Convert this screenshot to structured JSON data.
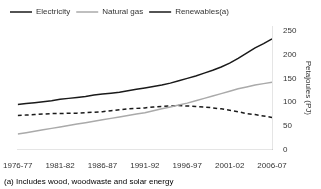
{
  "chart_data": {
    "type": "line",
    "x": [
      0,
      1,
      2,
      3,
      4,
      5,
      6,
      7,
      8,
      9,
      10,
      11,
      12,
      13,
      14,
      15,
      16,
      17,
      18,
      19,
      20,
      21,
      22,
      23,
      24,
      25,
      26,
      27,
      28,
      29,
      30
    ],
    "xlim": [
      0,
      30
    ],
    "xticks": [
      {
        "value": 0,
        "label": "1976-77"
      },
      {
        "value": 5,
        "label": "1981-82"
      },
      {
        "value": 10,
        "label": "1986-87"
      },
      {
        "value": 15,
        "label": "1991-92"
      },
      {
        "value": 20,
        "label": "1996-97"
      },
      {
        "value": 25,
        "label": "2001-02"
      },
      {
        "value": 30,
        "label": "2006-07"
      }
    ],
    "ylabel": "Petajoules (PJ)",
    "ylim": [
      0,
      260
    ],
    "yticks": [
      0,
      50,
      100,
      150,
      200,
      250
    ],
    "grid": false,
    "legend": "upper left",
    "annotations": [
      "(a) Includes wood, woodwaste and solar energy"
    ],
    "series": [
      {
        "name": "Electricity",
        "color": "#1a1a1a",
        "line_style": "solid",
        "values": [
          95,
          97,
          99,
          101,
          103,
          106,
          108,
          110,
          112,
          115,
          117,
          119,
          121,
          124,
          127,
          130,
          133,
          136,
          140,
          145,
          150,
          155,
          161,
          167,
          174,
          182,
          192,
          203,
          214,
          223,
          233
        ]
      },
      {
        "name": "Natural gas",
        "color": "#aaaaaa",
        "line_style": "solid",
        "values": [
          33,
          36,
          39,
          42,
          45,
          48,
          51,
          54,
          57,
          60,
          63,
          66,
          69,
          72,
          75,
          78,
          82,
          86,
          90,
          94,
          98,
          103,
          108,
          113,
          118,
          123,
          128,
          132,
          136,
          139,
          142
        ]
      },
      {
        "name": "Renewables(a)",
        "color": "#1a1a1a",
        "line_style": "dashed",
        "values": [
          72,
          73,
          74,
          75,
          76,
          76,
          77,
          77,
          78,
          79,
          80,
          82,
          84,
          86,
          87,
          88,
          90,
          91,
          92,
          93,
          92,
          91,
          90,
          88,
          86,
          83,
          80,
          76,
          74,
          71,
          68
        ]
      }
    ]
  }
}
